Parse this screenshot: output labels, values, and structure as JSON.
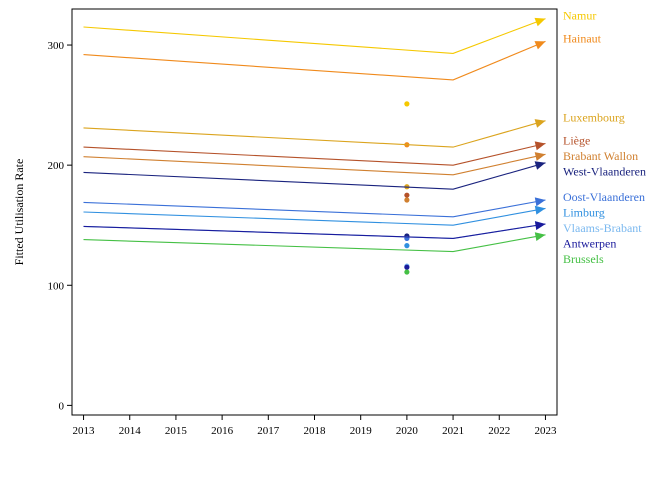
{
  "chart_data": {
    "type": "line",
    "title": "",
    "xlabel": "",
    "ylabel": "Fitted Utilisation Rate",
    "x_ticks": [
      "2013",
      "2014",
      "2015",
      "2016",
      "2017",
      "2018",
      "2019",
      "2020",
      "2021",
      "2022",
      "2023"
    ],
    "y_ticks": [
      "0",
      "100",
      "200",
      "300"
    ],
    "xlim": [
      2012.75,
      2023.25
    ],
    "ylim": [
      -8,
      330
    ],
    "grid": false,
    "legend_placement": "right (labels at line ends)",
    "series": [
      {
        "name": "Namur",
        "color": "#f5c800",
        "x": [
          2013,
          2021,
          2023
        ],
        "values": [
          315,
          293,
          322
        ],
        "point_2020": 251
      },
      {
        "name": "Hainaut",
        "color": "#f08a1c",
        "x": [
          2013,
          2021,
          2023
        ],
        "values": [
          292,
          271,
          303
        ],
        "point_2020": 217
      },
      {
        "name": "Luxembourg",
        "color": "#dba41e",
        "x": [
          2013,
          2021,
          2023
        ],
        "values": [
          231,
          215,
          237
        ],
        "point_2020": 182
      },
      {
        "name": "Liège",
        "color": "#b5522a",
        "x": [
          2013,
          2021,
          2023
        ],
        "values": [
          215,
          200,
          218
        ],
        "point_2020": 175
      },
      {
        "name": "Brabant Wallon",
        "color": "#d08030",
        "x": [
          2013,
          2021,
          2023
        ],
        "values": [
          207,
          192,
          209
        ],
        "point_2020": 171
      },
      {
        "name": "West-Vlaanderen",
        "color": "#1a237e",
        "x": [
          2013,
          2021,
          2023
        ],
        "values": [
          194,
          180,
          202
        ],
        "point_2020": 141
      },
      {
        "name": "Oost-Vlaanderen",
        "color": "#3a70d8",
        "x": [
          2013,
          2021,
          2023
        ],
        "values": [
          169,
          157,
          171
        ],
        "point_2020": 139
      },
      {
        "name": "Limburg",
        "color": "#3090e0",
        "x": [
          2013,
          2021,
          2023
        ],
        "values": [
          161,
          150,
          164
        ],
        "point_2020": 133
      },
      {
        "name": "Vlaams-Brabant",
        "color": "#7ab8ef",
        "x": [
          2013,
          2021,
          2023
        ],
        "values": [
          149,
          139,
          151
        ],
        "point_2020": 116
      },
      {
        "name": "Antwerpen",
        "color": "#1a1a9c",
        "x": [
          2013,
          2021,
          2023
        ],
        "values": [
          149,
          139,
          151
        ],
        "point_2020": 115
      },
      {
        "name": "Brussels",
        "color": "#45c045",
        "x": [
          2013,
          2021,
          2023
        ],
        "values": [
          138,
          128,
          142
        ],
        "point_2020": 111
      }
    ]
  }
}
